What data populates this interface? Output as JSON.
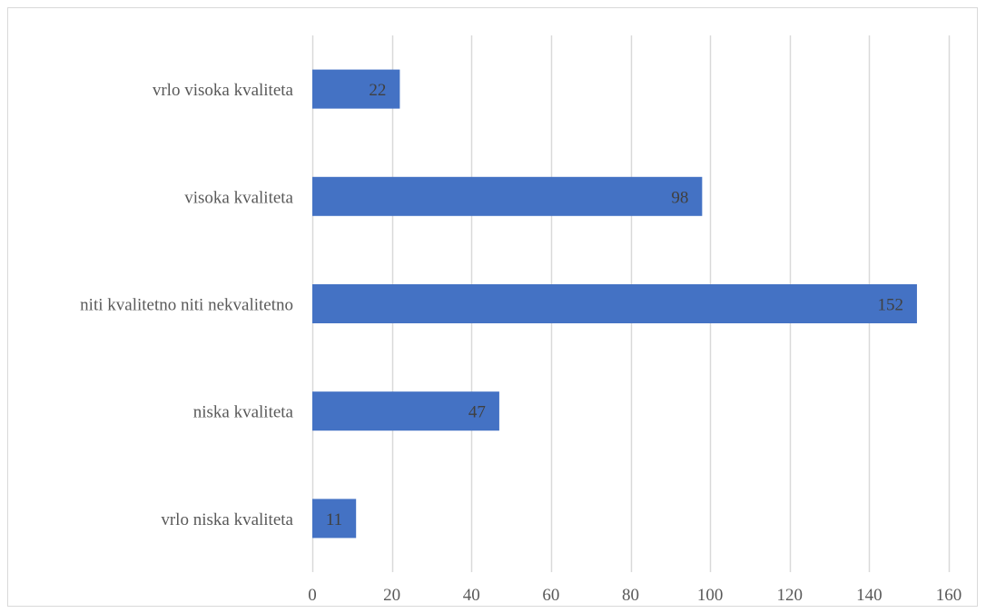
{
  "chart_data": {
    "type": "bar",
    "orientation": "horizontal",
    "categories": [
      "vrlo visoka kvaliteta",
      "visoka kvaliteta",
      "niti kvalitetno niti nekvalitetno",
      "niska kvaliteta",
      "vrlo niska kvaliteta"
    ],
    "values": [
      22,
      98,
      152,
      47,
      11
    ],
    "data_labels": [
      "22",
      "98",
      "152",
      "47",
      "11"
    ],
    "xlim": [
      0,
      160
    ],
    "x_ticks": [
      0,
      20,
      40,
      60,
      80,
      100,
      120,
      140,
      160
    ],
    "x_tick_labels": [
      "0",
      "20",
      "40",
      "60",
      "80",
      "100",
      "120",
      "140",
      "160"
    ],
    "grid": "vertical",
    "legend": "none",
    "bar_color": "#4472c4",
    "grid_color": "#d9d9d9"
  }
}
